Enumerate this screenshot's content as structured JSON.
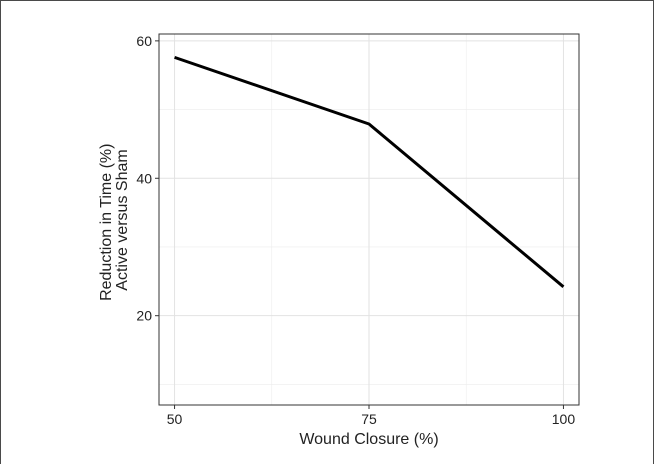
{
  "chart_data": {
    "type": "line",
    "title": "",
    "xlabel": "Wound Closure (%)",
    "ylabel_line1": "Reduction in Time (%)",
    "ylabel_line2": "Active versus Sham",
    "x": [
      50,
      75,
      100
    ],
    "series": [
      {
        "values": [
          57.6,
          47.9,
          24.2
        ]
      }
    ],
    "xlim": [
      48,
      102
    ],
    "ylim": [
      7,
      61
    ],
    "xticks": [
      50,
      75,
      100
    ],
    "xtick_labels": [
      "50",
      "75",
      "100"
    ],
    "yticks": [
      20,
      40,
      60
    ],
    "ytick_labels": [
      "20",
      "40",
      "60"
    ],
    "minor_xticks": [
      62.5,
      87.5
    ],
    "minor_yticks": [
      10,
      30,
      50
    ],
    "grid": true,
    "line_color": "#000000",
    "grid_color": "#ececec",
    "panel_border_color": "#333333"
  }
}
